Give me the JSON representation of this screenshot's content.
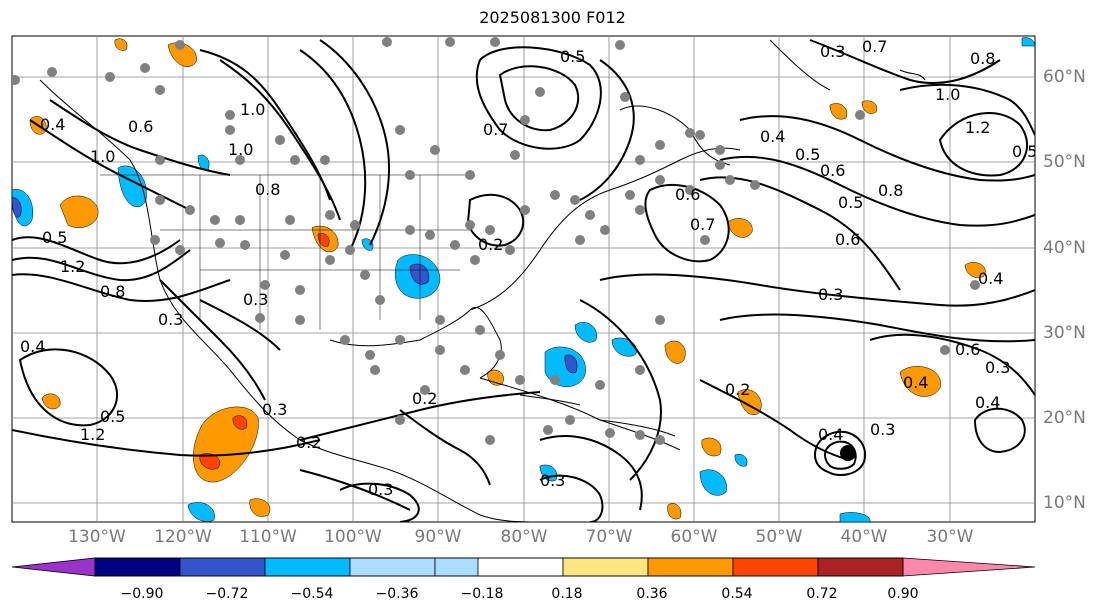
{
  "title": "2025081300 F012",
  "longitude_labels": [
    "130°W",
    "120°W",
    "110°W",
    "100°W",
    "90°W",
    "80°W",
    "70°W",
    "60°W",
    "50°W",
    "40°W",
    "30°W"
  ],
  "latitude_labels": [
    "60°N",
    "50°N",
    "40°N",
    "30°N",
    "20°N",
    "10°N"
  ],
  "colorbar": {
    "ticks": [
      "−0.90",
      "−0.72",
      "−0.54",
      "−0.36",
      "−0.18",
      "0.18",
      "0.36",
      "0.54",
      "0.72",
      "0.90"
    ],
    "colors": [
      "#9933cc",
      "#000080",
      "#3355cc",
      "#00bbff",
      "#aaddff",
      "#ffffff",
      "#ffe680",
      "#ff9900",
      "#ff4400",
      "#aa2222",
      "#ff88aa"
    ]
  },
  "contour_labels": [
    "0.3",
    "0.7",
    "0.8",
    "1.0",
    "1.2",
    "0.4",
    "0.5",
    "0.6",
    "0.8",
    "1.0",
    "0.4",
    "0.7",
    "0.5",
    "0.6",
    "1.2",
    "0.5",
    "0.8",
    "1.0",
    "0.3",
    "1.0",
    "0.6",
    "0.4",
    "0.4",
    "0.3",
    "0.3",
    "0.6",
    "0.4",
    "0.3",
    "0.8",
    "0.4",
    "0.5",
    "0.2",
    "0.2",
    "0.2",
    "0.3",
    "0.3",
    "0.3",
    "0.4",
    "0.7",
    "0.5",
    "0.2",
    "0.3",
    "0.6",
    "1.2",
    "0.5"
  ]
}
